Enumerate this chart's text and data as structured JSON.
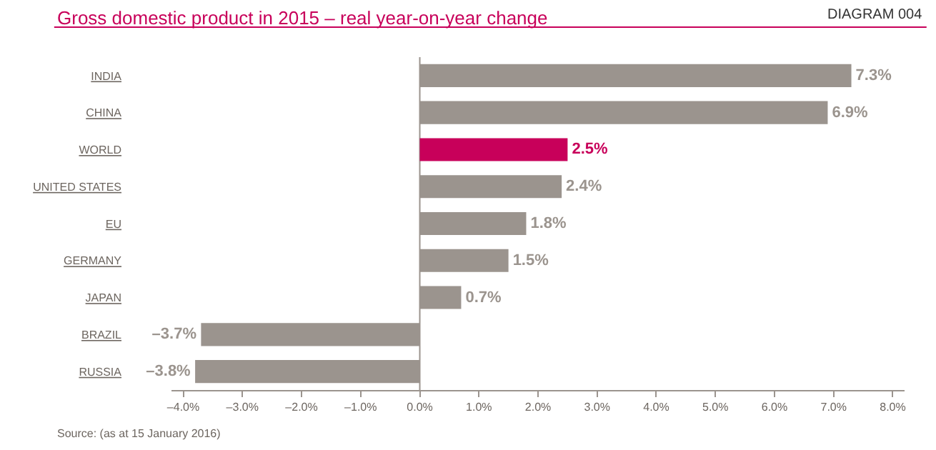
{
  "chart_data": {
    "type": "bar",
    "orientation": "horizontal",
    "title": "Gross domestic product in 2015 – real year-on-year change",
    "annotations": [
      "DIAGRAM 004",
      "Source: (as at 15 January 2016)"
    ],
    "categories": [
      "INDIA",
      "CHINA",
      "WORLD",
      "UNITED STATES",
      "EU",
      "GERMANY",
      "JAPAN",
      "BRAZIL",
      "RUSSIA"
    ],
    "values": [
      7.3,
      6.9,
      2.5,
      2.4,
      1.8,
      1.5,
      0.7,
      -3.7,
      -3.8
    ],
    "value_labels": [
      "7.3%",
      "6.9%",
      "2.5%",
      "2.4%",
      "1.8%",
      "1.5%",
      "0.7%",
      "–3.7%",
      "–3.8%"
    ],
    "colors": [
      "#9b948e",
      "#9b948e",
      "#c8005a",
      "#9b948e",
      "#9b948e",
      "#9b948e",
      "#9b948e",
      "#9b948e",
      "#9b948e"
    ],
    "xlim": [
      -4.2,
      8.2
    ],
    "xticks": [
      {
        "value": -4,
        "label": "–4.0%"
      },
      {
        "value": -3,
        "label": "–3.0%"
      },
      {
        "value": -2,
        "label": "–2.0%"
      },
      {
        "value": -1,
        "label": "–1.0%"
      },
      {
        "value": 0,
        "label": "0.0%"
      },
      {
        "value": 1,
        "label": "1.0%"
      },
      {
        "value": 2,
        "label": "2.0%"
      },
      {
        "value": 3,
        "label": "3.0%"
      },
      {
        "value": 4,
        "label": "4.0%"
      },
      {
        "value": 5,
        "label": "5.0%"
      },
      {
        "value": 6,
        "label": "6.0%"
      },
      {
        "value": 7,
        "label": "7.0%"
      },
      {
        "value": 8,
        "label": "8.0%"
      }
    ],
    "ref_lines": [
      {
        "axis": "x",
        "value": 0,
        "color": "#9b948e"
      }
    ],
    "grid": false,
    "legend": false
  }
}
